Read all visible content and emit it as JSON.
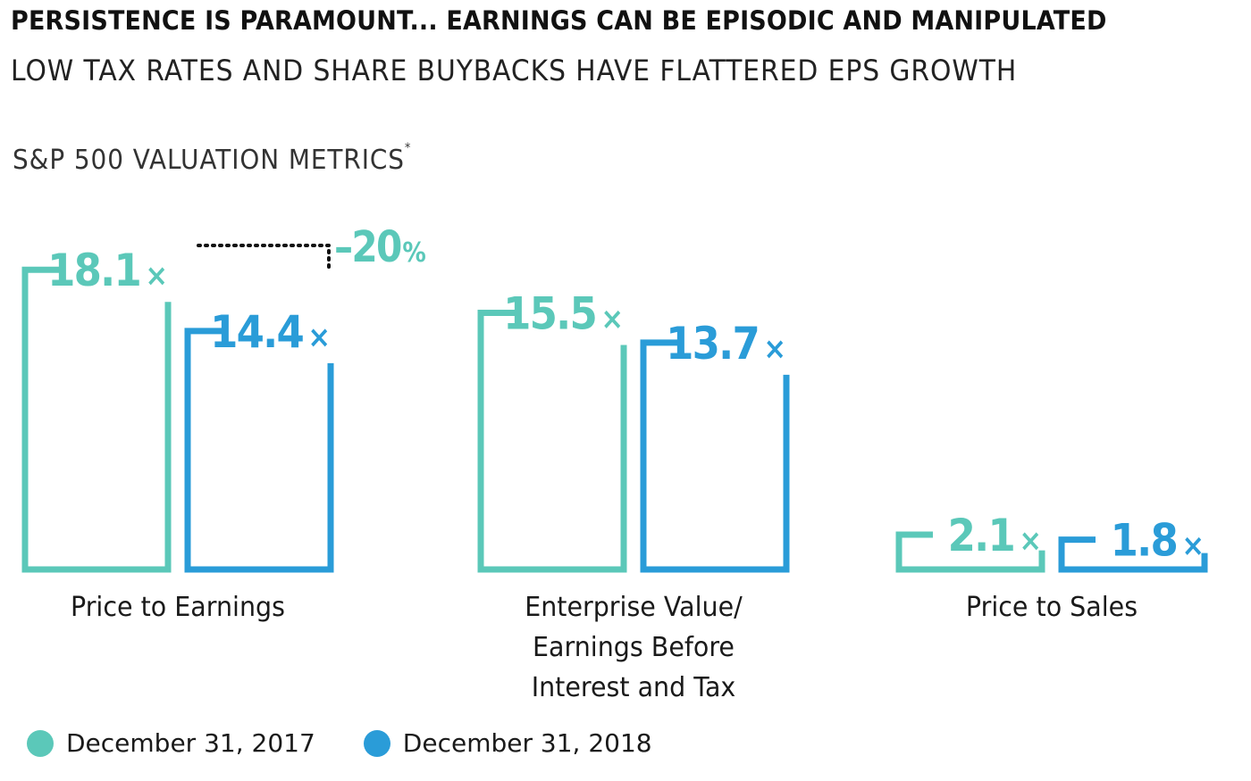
{
  "title": "PERSISTENCE IS PARAMOUNT... EARNINGS CAN BE EPISODIC AND MANIPULATED",
  "subtitle": "LOW TAX RATES AND SHARE BUYBACKS HAVE FLATTERED EPS GROWTH",
  "section_title": "S&P 500 VALUATION METRICS",
  "section_title_footnote_mark": "*",
  "colors": {
    "series_2017": "#5bc8b9",
    "series_2018": "#2a9cd8",
    "connector": "#111111"
  },
  "chart_data": {
    "type": "bar",
    "categories": [
      "Price to Earnings",
      "Enterprise Value/ Earnings Before Interest and Tax",
      "Price to Sales"
    ],
    "category_label_lines": [
      [
        "Price to Earnings"
      ],
      [
        "Enterprise Value/",
        "Earnings Before",
        "Interest and Tax"
      ],
      [
        "Price to Sales"
      ]
    ],
    "series": [
      {
        "name": "December 31, 2017",
        "values": [
          18.1,
          15.5,
          2.1
        ],
        "labels": [
          "18.1",
          "15.5",
          "2.1"
        ]
      },
      {
        "name": "December 31, 2018",
        "values": [
          14.4,
          13.7,
          1.8
        ],
        "labels": [
          "14.4",
          "13.7",
          "1.8"
        ]
      }
    ],
    "value_suffix": "×",
    "annotation": {
      "category": "Price to Earnings",
      "number": "–20",
      "unit": "%"
    },
    "title": "S&P 500 VALUATION METRICS",
    "xlabel": "",
    "ylabel": "",
    "grid": false,
    "legend_position": "bottom-left"
  },
  "legend": {
    "items": [
      {
        "label": "December 31, 2017"
      },
      {
        "label": "December 31, 2018"
      }
    ]
  }
}
